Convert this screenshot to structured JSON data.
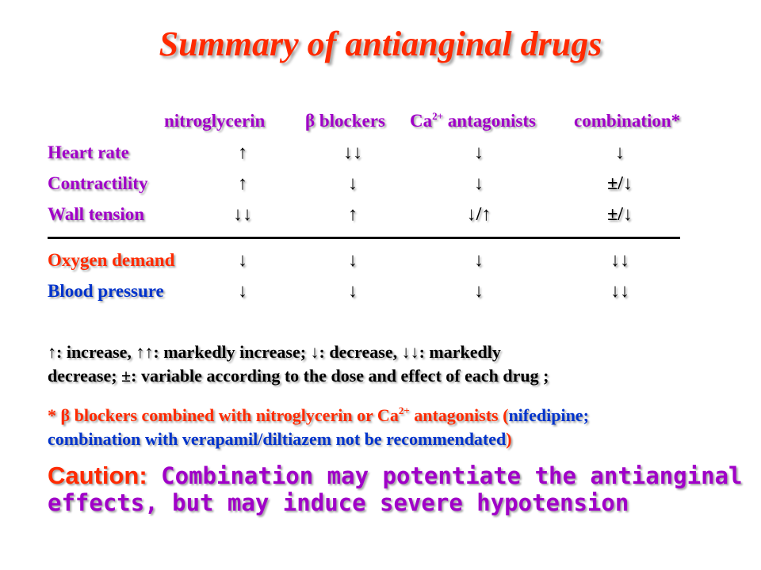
{
  "title": "Summary of antianginal drugs",
  "columns": {
    "c1": "nitroglycerin",
    "c2_symbol": "β",
    "c2_text": " blockers",
    "c3_base": "Ca",
    "c3_sup": "2+",
    "c3_text": " antagonists",
    "c4": "combination*"
  },
  "rows": [
    {
      "label": "Heart rate",
      "values": [
        "↑",
        "↓↓",
        "↓",
        "↓"
      ]
    },
    {
      "label": "Contractility",
      "values": [
        "↑",
        "↓",
        "↓",
        "±/↓"
      ]
    },
    {
      "label": "Wall tension",
      "values": [
        "↓↓",
        "↑",
        "↓/↑",
        "±/↓"
      ]
    },
    {
      "label": "Oxygen demand",
      "values": [
        "↓",
        "↓",
        "↓",
        "↓↓"
      ]
    },
    {
      "label": "Blood pressure",
      "values": [
        "↓",
        "↓",
        "↓",
        "↓↓"
      ]
    }
  ],
  "legend": {
    "line1": "↑: increase, ↑↑: markedly increase;   ↓: decrease, ↓↓: markedly",
    "line2": "decrease;  ±: variable according to the dose and effect of each drug ;"
  },
  "footnote": {
    "star": "* ",
    "beta": "β",
    "part1": " blockers combined with nitroglycerin or Ca",
    "sup": "2+",
    "part2": " antagonists (",
    "part3": "nifedipine;",
    "part4": "combination with verapamil/diltiazem not be recommendated",
    "part5": ")"
  },
  "caution": {
    "lead": "Caution:",
    "text": " Combination may potentiate the antianginal effects, but may induce severe hypotension"
  },
  "colors": {
    "title": "#ff2a00",
    "header": "#a000c8",
    "row_purple": "#a000c8",
    "row_red": "#ff2a00",
    "row_blue": "#0033cc",
    "legend": "#000000"
  }
}
